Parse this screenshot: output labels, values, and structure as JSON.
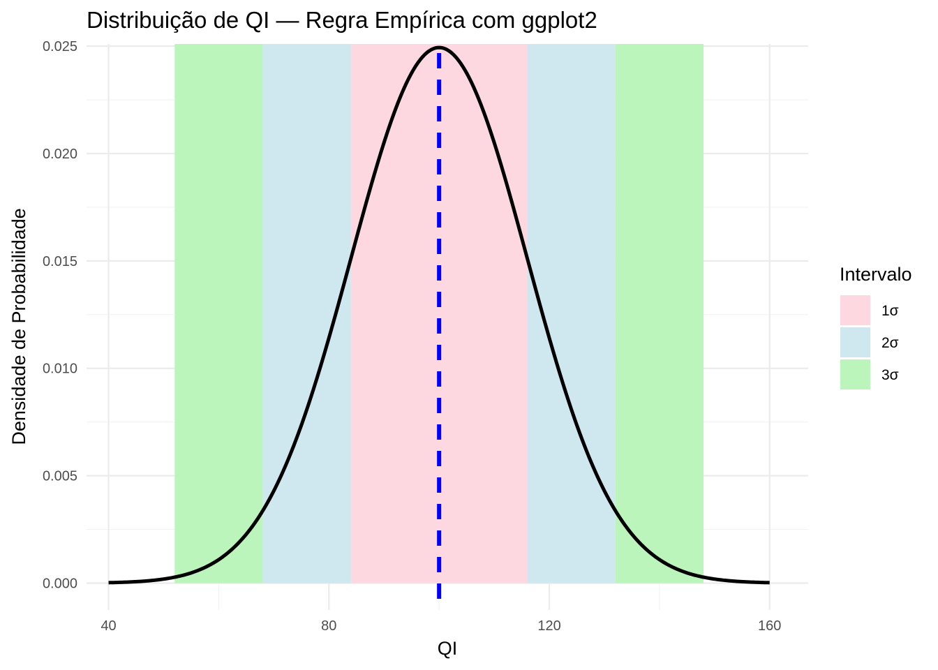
{
  "chart_data": {
    "type": "area",
    "title": "Distribuição de QI — Regra Empírica com ggplot2",
    "xlabel": "QI",
    "ylabel": "Densidade de Probabilidade",
    "xlim": [
      36,
      167
    ],
    "ylim": [
      -0.00125,
      0.0251
    ],
    "x_ticks": [
      40,
      80,
      120,
      160
    ],
    "x_tick_labels": [
      "40",
      "80",
      "120",
      "160"
    ],
    "y_ticks": [
      0.0,
      0.005,
      0.01,
      0.015,
      0.02,
      0.025
    ],
    "y_tick_labels": [
      "0.000",
      "0.005",
      "0.010",
      "0.015",
      "0.020",
      "0.025"
    ],
    "grid": true,
    "distribution": {
      "name": "normal",
      "mean": 100,
      "sd": 16,
      "x_range": [
        40,
        160
      ]
    },
    "mean_line": {
      "x": 100,
      "color": "#0000ff",
      "style": "dashed"
    },
    "bands": [
      {
        "interval": "3σ",
        "x_start": 52,
        "x_end": 68,
        "color": "#bbf5bb"
      },
      {
        "interval": "2σ",
        "x_start": 68,
        "x_end": 84,
        "color": "#cfe7ee"
      },
      {
        "interval": "1σ",
        "x_start": 84,
        "x_end": 116,
        "color": "#fdd8e0"
      },
      {
        "interval": "2σ",
        "x_start": 116,
        "x_end": 132,
        "color": "#cfe7ee"
      },
      {
        "interval": "3σ",
        "x_start": 132,
        "x_end": 148,
        "color": "#bbf5bb"
      }
    ],
    "curve_color": "#000000",
    "legend": {
      "title": "Intervalo",
      "position": "right",
      "entries": [
        {
          "label": "1σ",
          "color": "#fdd8e0"
        },
        {
          "label": "2σ",
          "color": "#cfe7ee"
        },
        {
          "label": "3σ",
          "color": "#bbf5bb"
        }
      ]
    }
  }
}
